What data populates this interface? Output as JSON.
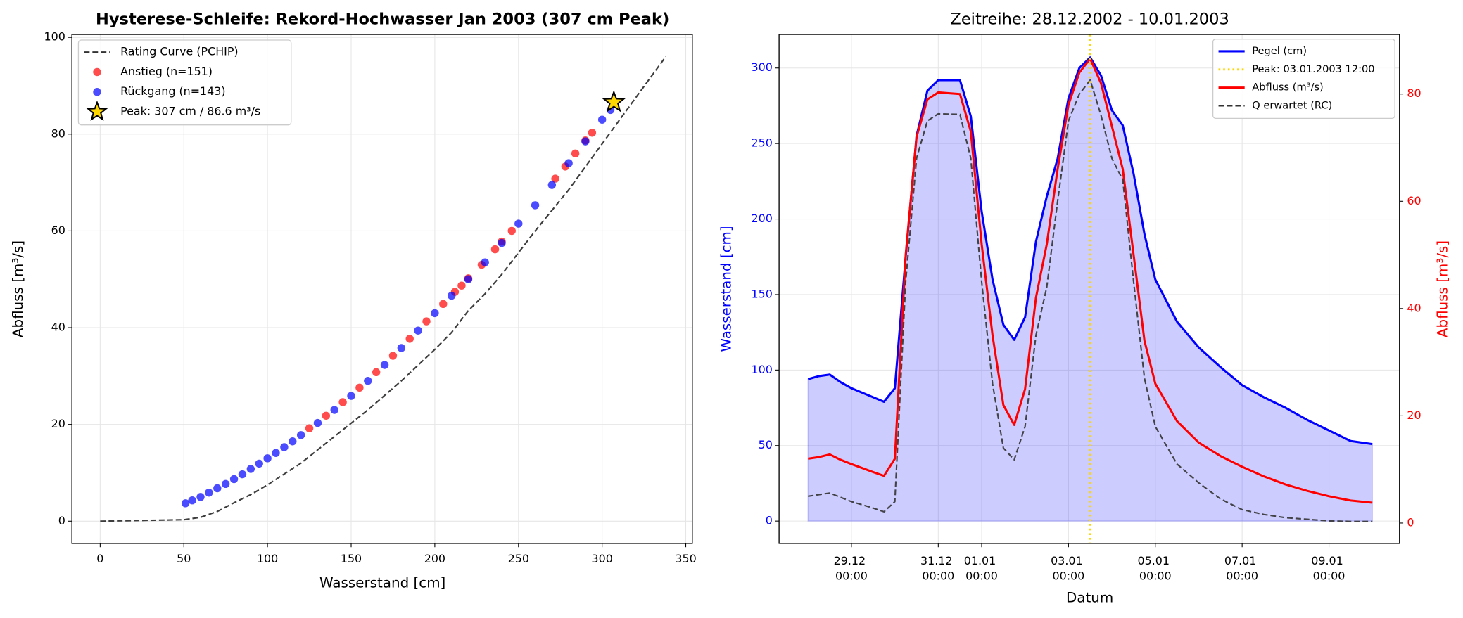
{
  "chart_data": [
    {
      "type": "scatter",
      "title": "Hysterese-Schleife: Rekord-Hochwasser Jan 2003 (307 cm Peak)",
      "xlabel": "Wasserstand [cm]",
      "ylabel": "Abfluss [m³/s]",
      "xlim": [
        -16.9,
        353.9
      ],
      "ylim": [
        -4.6,
        100.6
      ],
      "xticks": [
        0,
        50,
        100,
        150,
        200,
        250,
        300,
        350
      ],
      "yticks": [
        0,
        20,
        40,
        60,
        80,
        100
      ],
      "grid": true,
      "legend": "upper left",
      "series": [
        {
          "name": "Rating Curve (PCHIP)",
          "kind": "line",
          "linestyle": "dashed",
          "color": "#333333",
          "x": [
            0,
            50,
            60,
            70,
            80,
            90,
            100,
            120,
            140,
            160,
            180,
            200,
            210,
            220,
            230,
            240,
            250,
            260,
            280,
            300,
            320,
            338
          ],
          "values": [
            0,
            0.3,
            0.8,
            2,
            3.8,
            5.5,
            7.5,
            12,
            17.5,
            23,
            29,
            35.5,
            39,
            43.5,
            47,
            51,
            55.5,
            60,
            68.5,
            78,
            87.5,
            96
          ]
        },
        {
          "name": "Anstieg (n=151)",
          "kind": "scatter",
          "color": "#ff0000",
          "x": [
            125,
            135,
            145,
            155,
            165,
            175,
            185,
            195,
            205,
            212,
            216,
            220,
            228,
            236,
            240,
            246,
            272,
            278,
            284,
            290,
            294
          ],
          "values": [
            19.2,
            21.8,
            24.6,
            27.6,
            30.8,
            34.2,
            37.7,
            41.3,
            44.9,
            47.4,
            48.7,
            50.2,
            53,
            56.2,
            57.8,
            60,
            70.8,
            73.3,
            76,
            78.7,
            80.3
          ]
        },
        {
          "name": "Rückgang (n=143)",
          "kind": "scatter",
          "color": "#0000ff",
          "x": [
            51,
            55,
            60,
            65,
            70,
            75,
            80,
            85,
            90,
            95,
            100,
            105,
            110,
            115,
            120,
            130,
            140,
            150,
            160,
            170,
            180,
            190,
            200,
            210,
            220,
            230,
            240,
            250,
            260,
            270,
            280,
            290,
            300,
            305
          ],
          "values": [
            3.7,
            4.3,
            5,
            5.9,
            6.8,
            7.7,
            8.7,
            9.7,
            10.8,
            11.9,
            13,
            14.1,
            15.3,
            16.5,
            17.8,
            20.3,
            23,
            25.9,
            29,
            32.3,
            35.8,
            39.4,
            43,
            46.6,
            50,
            53.5,
            57.5,
            61.5,
            65.3,
            69.5,
            74,
            78.5,
            83,
            85
          ]
        },
        {
          "name": "Peak: 307 cm / 86.6 m³/s",
          "kind": "star",
          "color": "#ffd700",
          "x": [
            307
          ],
          "values": [
            86.6
          ]
        }
      ]
    },
    {
      "type": "line",
      "title": "Zeitreihe: 28.12.2002 - 10.01.2003",
      "xlabel": "Datum",
      "ylabel": "Wasserstand [cm]",
      "y2label": "Abfluss [m³/s]",
      "y_color": "#0000ff",
      "y2_color": "#ff0000",
      "xlim": [
        "27.12 08:00",
        "10.01 15:00"
      ],
      "ylim": [
        -14.8,
        322.2
      ],
      "y2lim": [
        -3.8,
        91.1
      ],
      "xticks": [
        "29.12 00:00",
        "31.12 00:00",
        "01.01 00:00",
        "03.01 00:00",
        "05.01 00:00",
        "07.01 00:00",
        "09.01 00:00"
      ],
      "yticks": [
        0,
        50,
        100,
        150,
        200,
        250,
        300
      ],
      "y2ticks": [
        0,
        20,
        40,
        60,
        80
      ],
      "grid": true,
      "legend": "upper right",
      "x": [
        "28.12 00:00",
        "28.12 06:00",
        "28.12 12:00",
        "28.12 18:00",
        "29.12 00:00",
        "29.12 12:00",
        "29.12 18:00",
        "30.12 00:00",
        "30.12 06:00",
        "30.12 12:00",
        "30.12 18:00",
        "31.12 00:00",
        "31.12 12:00",
        "31.12 18:00",
        "01.01 00:00",
        "01.01 06:00",
        "01.01 12:00",
        "01.01 18:00",
        "02.01 00:00",
        "02.01 06:00",
        "02.01 12:00",
        "02.01 18:00",
        "03.01 00:00",
        "03.01 06:00",
        "03.01 12:00",
        "03.01 18:00",
        "04.01 00:00",
        "04.01 06:00",
        "04.01 12:00",
        "04.01 18:00",
        "05.01 00:00",
        "05.01 12:00",
        "06.01 00:00",
        "06.01 12:00",
        "07.01 00:00",
        "07.01 12:00",
        "08.01 00:00",
        "08.01 12:00",
        "09.01 00:00",
        "09.01 12:00",
        "10.01 00:00"
      ],
      "series": [
        {
          "name": "Pegel (cm)",
          "color": "#0000ff",
          "axis": "y",
          "fill": true,
          "linestyle": "solid",
          "values": [
            94,
            96,
            97,
            92,
            88,
            82,
            79,
            88,
            175,
            255,
            285,
            292,
            292,
            268,
            205,
            160,
            130,
            120,
            135,
            185,
            215,
            240,
            280,
            300,
            307,
            295,
            272,
            262,
            230,
            190,
            160,
            132,
            115,
            102,
            90,
            82,
            75,
            67,
            60,
            53,
            51
          ]
        },
        {
          "name": "Abfluss (m³/s)",
          "color": "#ff0000",
          "axis": "y2",
          "linestyle": "solid",
          "values": [
            12,
            12.3,
            12.8,
            11.8,
            11,
            9.5,
            8.8,
            12,
            50,
            72,
            79,
            80.3,
            80,
            73,
            52,
            35,
            22,
            18.3,
            25,
            42,
            52,
            66,
            78,
            84,
            86.6,
            82,
            74,
            66,
            50,
            34,
            26,
            19,
            15,
            12.5,
            10.5,
            8.7,
            7.2,
            6,
            5,
            4.2,
            3.8
          ]
        },
        {
          "name": "Q erwartet (RC)",
          "color": "#333333",
          "axis": "y2",
          "linestyle": "dashed",
          "values": [
            5,
            5.3,
            5.6,
            4.8,
            4,
            2.8,
            2.1,
            4,
            45,
            68,
            75,
            76.3,
            76.2,
            68,
            45,
            26,
            14,
            11.8,
            18,
            35,
            44,
            60,
            75,
            80,
            82.6,
            76,
            68,
            64,
            45,
            27,
            18,
            11,
            7.5,
            4.5,
            2.5,
            1.6,
            1,
            0.7,
            0.4,
            0.3,
            0.3
          ]
        }
      ],
      "vline": {
        "name": "Peak: 03.01.2003 12:00",
        "x": "03.01 12:00",
        "color": "#ffd700",
        "linestyle": "dotted"
      }
    }
  ]
}
